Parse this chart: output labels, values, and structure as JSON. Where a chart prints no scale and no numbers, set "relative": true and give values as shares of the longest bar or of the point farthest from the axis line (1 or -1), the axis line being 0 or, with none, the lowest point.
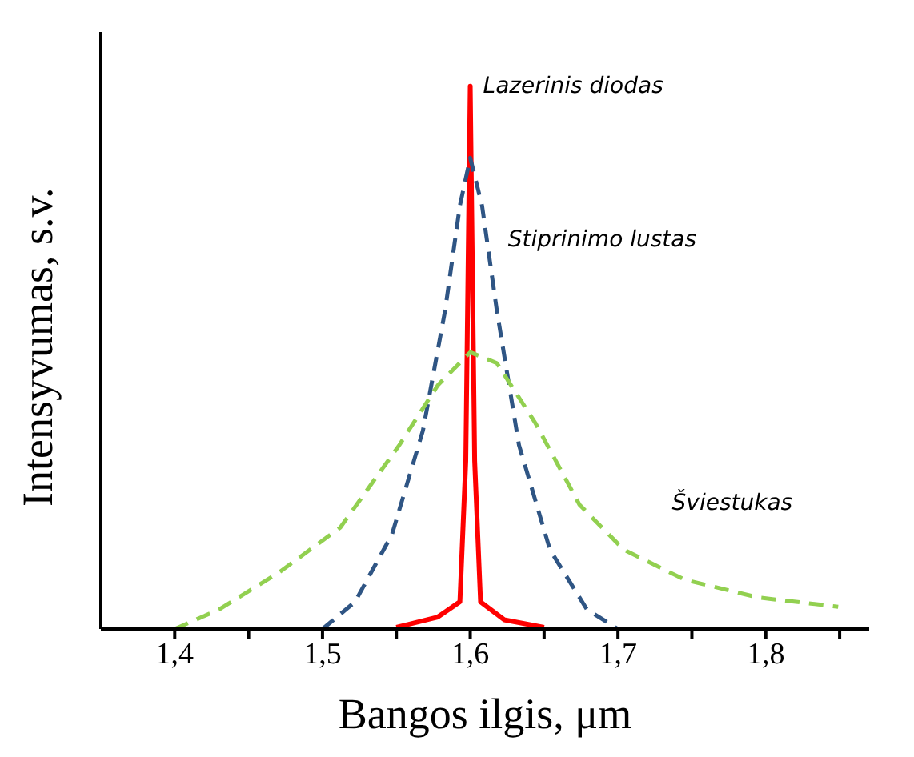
{
  "chart_data": {
    "type": "line",
    "relative": true,
    "xlabel": "Bangos ilgis, μm",
    "ylabel": "Intensyvumas, s.v.",
    "xlim": [
      1.35,
      1.87
    ],
    "xticks": [
      {
        "value": 1.4,
        "label": "1,4"
      },
      {
        "value": 1.45,
        "label": null
      },
      {
        "value": 1.5,
        "label": "1,5"
      },
      {
        "value": 1.55,
        "label": null
      },
      {
        "value": 1.6,
        "label": "1,6"
      },
      {
        "value": 1.65,
        "label": null
      },
      {
        "value": 1.7,
        "label": "1,7"
      },
      {
        "value": 1.75,
        "label": null
      },
      {
        "value": 1.8,
        "label": "1,8"
      },
      {
        "value": 1.85,
        "label": null
      }
    ],
    "marker": "none",
    "series": [
      {
        "name": "Lazerinis diodas",
        "color": "#ff0000",
        "line_style": "solid",
        "x": [
          1.55,
          1.578,
          1.593,
          1.597,
          1.6,
          1.603,
          1.607,
          1.623,
          1.65
        ],
        "values": [
          0.003,
          0.022,
          0.05,
          0.31,
          1,
          0.31,
          0.05,
          0.017,
          0.003
        ]
      },
      {
        "name": "Stiprinimo lustas",
        "color": "#2f5584",
        "line_style": "dashed",
        "x": [
          1.5,
          1.522,
          1.547,
          1.568,
          1.583,
          1.593,
          1.6,
          1.608,
          1.618,
          1.633,
          1.654,
          1.679,
          1.7
        ],
        "values": [
          0,
          0.05,
          0.174,
          0.366,
          0.587,
          0.78,
          0.868,
          0.78,
          0.587,
          0.339,
          0.146,
          0.036,
          0
        ]
      },
      {
        "name": "Šviestukas",
        "color": "#92d050",
        "line_style": "dashed",
        "x": [
          1.4,
          1.43,
          1.471,
          1.512,
          1.552,
          1.578,
          1.6,
          1.618,
          1.644,
          1.674,
          1.704,
          1.745,
          1.795,
          1.849
        ],
        "values": [
          0,
          0.036,
          0.105,
          0.187,
          0.339,
          0.449,
          0.51,
          0.49,
          0.38,
          0.229,
          0.146,
          0.091,
          0.058,
          0.041
        ]
      }
    ]
  }
}
